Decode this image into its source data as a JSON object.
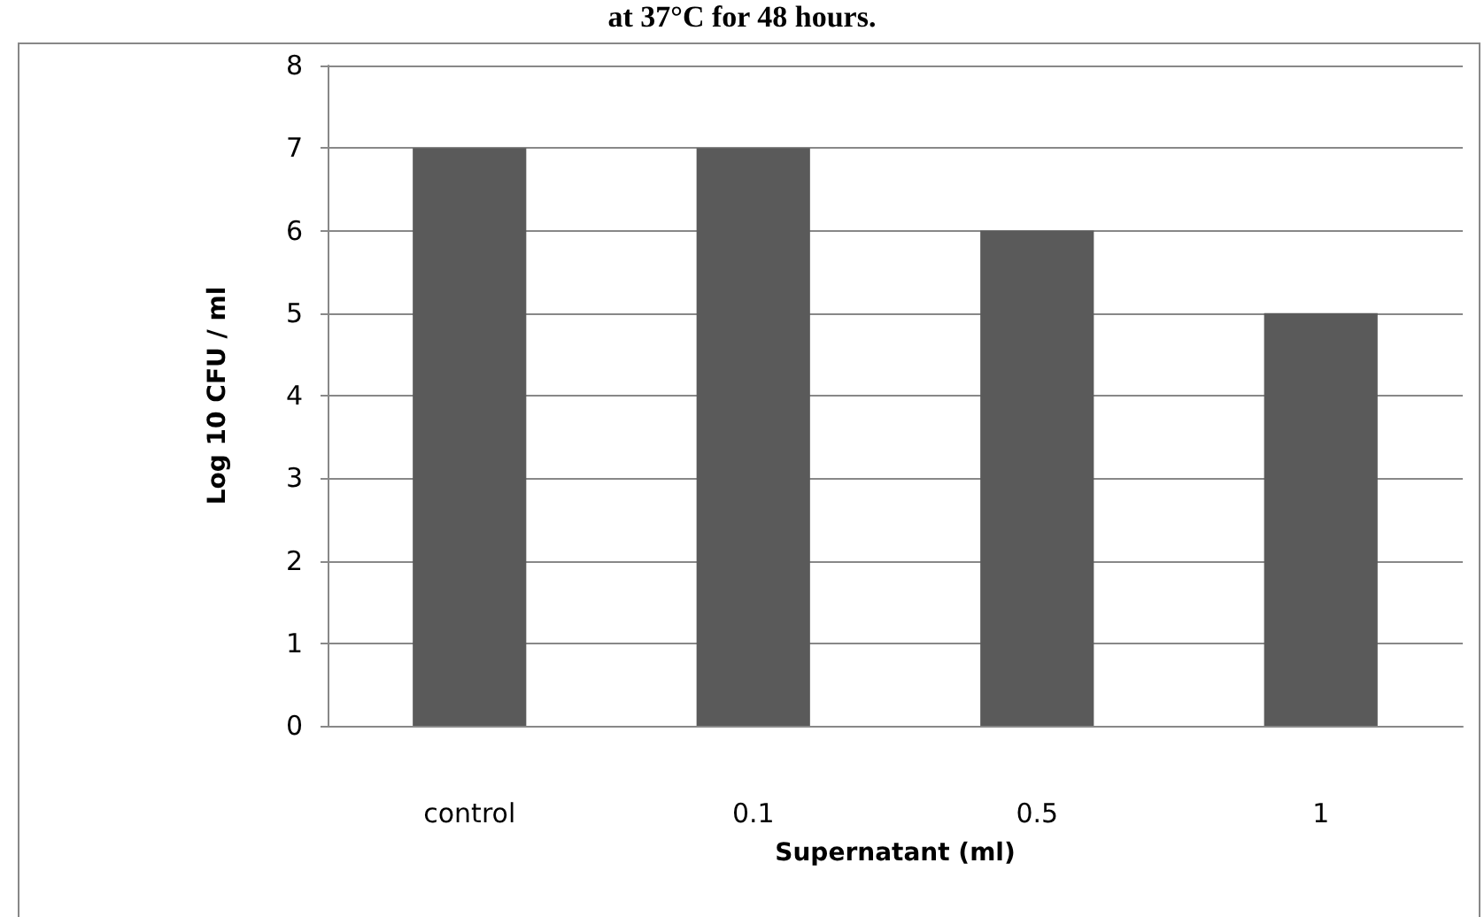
{
  "chart_data": {
    "type": "bar",
    "title": "at 37°C for 48 hours.",
    "xlabel": "Supernatant (ml)",
    "ylabel": "Log 10 CFU / ml",
    "categories": [
      "control",
      "0.1",
      "0.5",
      "1"
    ],
    "values": [
      7,
      7,
      6,
      5
    ],
    "color": "#5a5a5a",
    "ylim": [
      0,
      8
    ],
    "yticks": [
      0,
      1,
      2,
      3,
      4,
      5,
      6,
      7,
      8
    ],
    "grid": "y"
  }
}
